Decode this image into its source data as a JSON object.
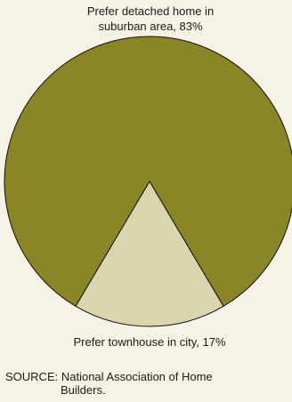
{
  "chart_data": {
    "type": "pie",
    "slices": [
      {
        "label": "Prefer detached home in suburban area",
        "value": 83,
        "display": "83%",
        "color": "#8a8626"
      },
      {
        "label": "Prefer townhouse in city",
        "value": 17,
        "display": "17%",
        "color": "#d9d6ad"
      }
    ],
    "labels": {
      "top_line1": "Prefer detached home in",
      "top_line2": "suburban area, 83%",
      "bottom": "Prefer townhouse in city, 17%"
    }
  },
  "source": {
    "line1": "SOURCE: National Association of Home",
    "line2": "Builders."
  }
}
